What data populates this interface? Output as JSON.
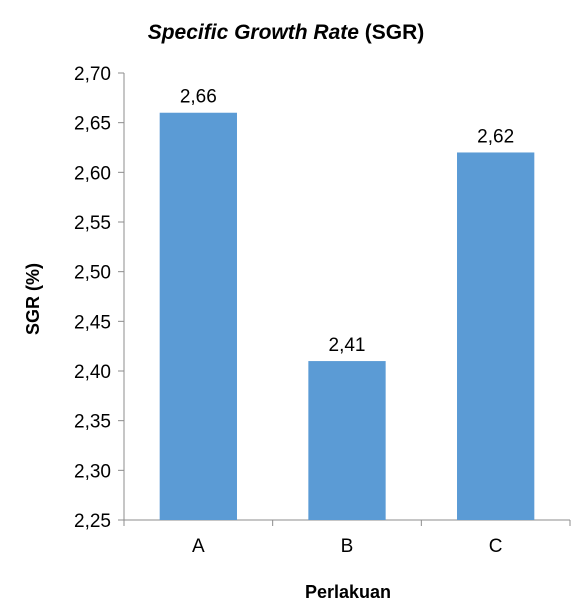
{
  "chart_data": {
    "type": "bar",
    "title_italic": "Specific Growth Rate",
    "title_rest": " (SGR)",
    "xlabel": "Perlakuan",
    "ylabel": "SGR (%)",
    "categories": [
      "A",
      "B",
      "C"
    ],
    "values": [
      2.66,
      2.41,
      2.62
    ],
    "value_labels": [
      "2,66",
      "2,41",
      "2,62"
    ],
    "ylim": [
      2.25,
      2.7
    ],
    "yticks": [
      2.25,
      2.3,
      2.35,
      2.4,
      2.45,
      2.5,
      2.55,
      2.6,
      2.65,
      2.7
    ],
    "ytick_labels": [
      "2,25",
      "2,30",
      "2,35",
      "2,40",
      "2,45",
      "2,50",
      "2,55",
      "2,60",
      "2,65",
      "2,70"
    ],
    "grid": false,
    "legend": "none",
    "bar_color": "#5b9bd5",
    "axis_color": "#8c8c8c"
  }
}
